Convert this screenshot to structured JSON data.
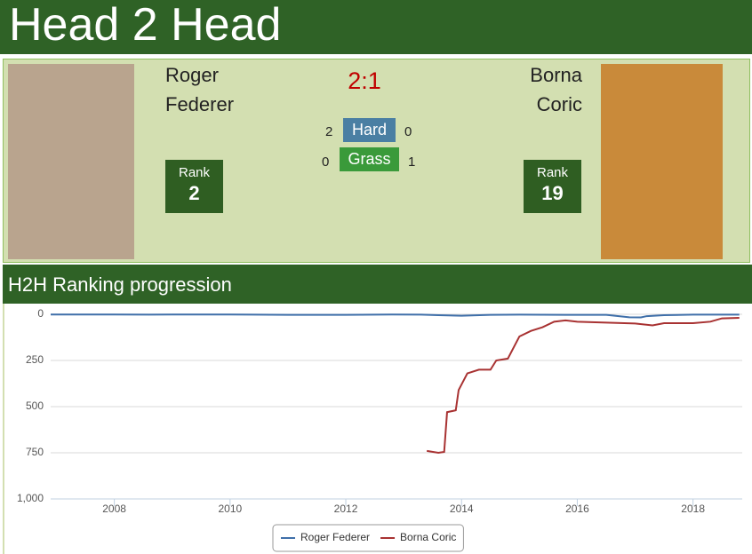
{
  "header": {
    "title": "Head 2 Head"
  },
  "player1": {
    "first_name": "Roger",
    "last_name": "Federer",
    "rank_label": "Rank",
    "rank": 2
  },
  "player2": {
    "first_name": "Borna",
    "last_name": "Coric",
    "rank_label": "Rank",
    "rank": 19
  },
  "score": "2:1",
  "surfaces": [
    {
      "name": "Hard",
      "player1_wins": 2,
      "player2_wins": 0,
      "color": "#4a7fa3"
    },
    {
      "name": "Grass",
      "player1_wins": 0,
      "player2_wins": 1,
      "color": "#3a9a3a"
    }
  ],
  "section_title": "H2H Ranking progression",
  "chart_data": {
    "type": "line",
    "xlim": [
      2006.9,
      2018.85
    ],
    "xticks": [
      2008,
      2010,
      2012,
      2014,
      2016,
      2018
    ],
    "ylim": [
      0,
      1000
    ],
    "y_reversed": true,
    "yticks": [
      0,
      250,
      500,
      750,
      {
        "value": 1000,
        "label": "1,000"
      }
    ],
    "grid": true,
    "legend": "bottom",
    "series": [
      {
        "name": "Roger Federer",
        "color": "#3f6fa9",
        "x": [
          2006.9,
          2008,
          2008.6,
          2009,
          2010,
          2010.4,
          2011,
          2012,
          2012.8,
          2013.3,
          2013.6,
          2014,
          2014.5,
          2015,
          2016,
          2016.5,
          2016.9,
          2017.1,
          2017.2,
          2017.5,
          2018,
          2018.8
        ],
        "values": [
          1,
          1,
          2,
          1,
          1,
          2,
          3,
          3,
          1,
          2,
          5,
          8,
          3,
          2,
          3,
          3,
          16,
          17,
          10,
          5,
          2,
          2
        ]
      },
      {
        "name": "Borna Coric",
        "color": "#a83232",
        "x": [
          2013.4,
          2013.6,
          2013.7,
          2013.75,
          2013.9,
          2013.95,
          2014,
          2014.1,
          2014.3,
          2014.5,
          2014.6,
          2014.8,
          2014.9,
          2015,
          2015.2,
          2015.4,
          2015.6,
          2015.8,
          2016,
          2016.5,
          2017,
          2017.3,
          2017.5,
          2018,
          2018.3,
          2018.5,
          2018.8
        ],
        "values": [
          740,
          750,
          745,
          530,
          520,
          410,
          380,
          320,
          300,
          300,
          250,
          240,
          180,
          120,
          90,
          70,
          40,
          33,
          40,
          45,
          50,
          60,
          48,
          48,
          40,
          22,
          19
        ]
      }
    ]
  }
}
